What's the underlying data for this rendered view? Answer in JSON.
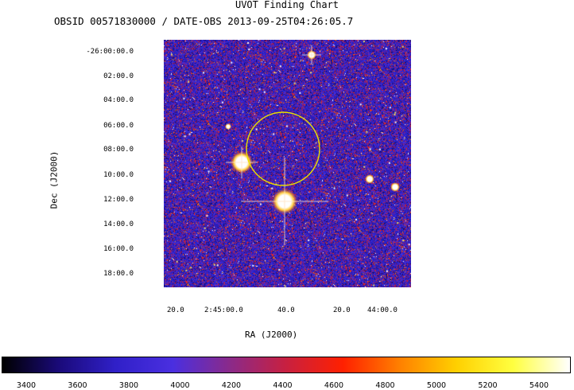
{
  "title": "UVOT Finding Chart",
  "subtitle": "OBSID 00571830000 / DATE-OBS 2013-09-25T04:26:05.7",
  "axes": {
    "y_title": "Dec (J2000)",
    "x_title": "RA (J2000)",
    "dec_ticks": [
      "-26:00:00.0",
      "02:00.0",
      "04:00.0",
      "06:00.0",
      "08:00.0",
      "10:00.0",
      "12:00.0",
      "14:00.0",
      "16:00.0",
      "18:00.0"
    ],
    "ra_ticks": [
      "20.0",
      "2:45:00.0",
      "40.0",
      "20.0",
      "44:00.0"
    ]
  },
  "colorbar": {
    "ticks": [
      "3400",
      "3600",
      "3800",
      "4000",
      "4200",
      "4400",
      "4600",
      "4800",
      "5000",
      "5200",
      "5400"
    ],
    "colormap": [
      "#000000",
      "#1a0a7a",
      "#3020c8",
      "#4a2fe0",
      "#8a2a8a",
      "#c82040",
      "#ff2000",
      "#ff8000",
      "#ffd000",
      "#ffff40",
      "#ffffff"
    ]
  },
  "marker": {
    "shape": "circle",
    "color": "#e8e000"
  }
}
